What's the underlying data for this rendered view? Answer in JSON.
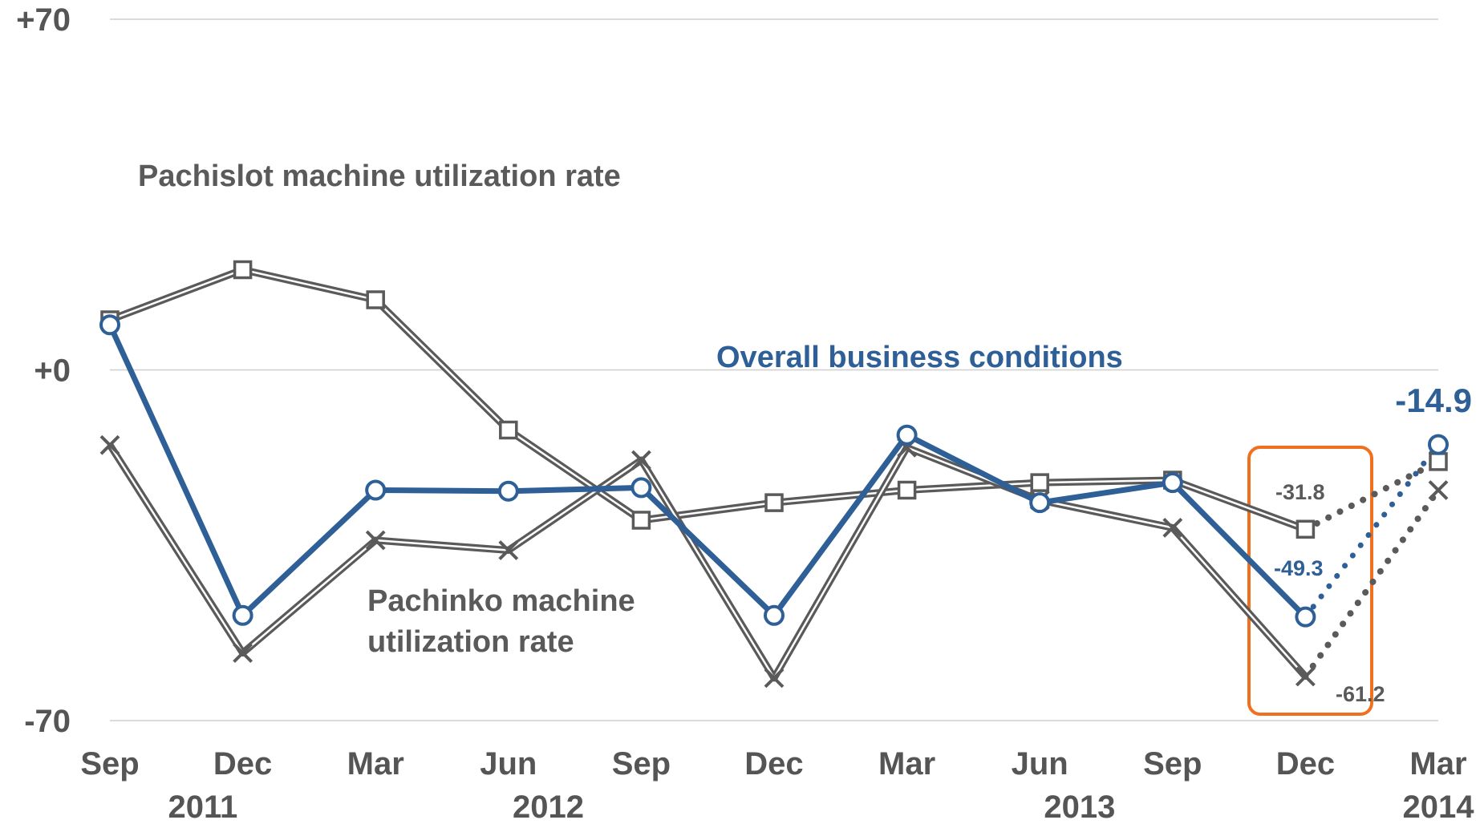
{
  "chart_data": {
    "type": "line",
    "x": [
      "Sep",
      "Dec",
      "Mar",
      "Jun",
      "Sep",
      "Dec",
      "Mar",
      "Jun",
      "Sep",
      "Dec",
      "Mar"
    ],
    "years": [
      {
        "label": "2011",
        "x_index": 0.7
      },
      {
        "label": "2012",
        "x_index": 3.3
      },
      {
        "label": "2013",
        "x_index": 7.3
      },
      {
        "label": "2014",
        "x_index": 10.0
      }
    ],
    "ylim": [
      -70,
      70
    ],
    "yticks": [
      {
        "value": 70,
        "label": "+70"
      },
      {
        "value": 0,
        "label": "+0"
      },
      {
        "value": -70,
        "label": "-70"
      }
    ],
    "grid": true,
    "series": [
      {
        "name": "Pachislot machine utilization rate",
        "color": "#5a5a5a",
        "marker": "square",
        "values": [
          10.0,
          20.0,
          14.0,
          -12.0,
          -30.0,
          -26.5,
          -24.0,
          -22.5,
          -22.0,
          -31.8,
          -18.3
        ],
        "dotted_from": 9
      },
      {
        "name": "Pachinko machine utilization rate",
        "color": "#5a5a5a",
        "marker": "x",
        "values": [
          -15.0,
          -56.5,
          -34.0,
          -36.0,
          -18.0,
          -61.5,
          -15.5,
          -26.0,
          -31.5,
          -61.2,
          -24.0
        ],
        "dotted_from": 9
      },
      {
        "name": "Overall business conditions",
        "color": "#2e5f96",
        "marker": "circle",
        "values": [
          9.0,
          -49.0,
          -24.0,
          -24.2,
          -23.5,
          -49.0,
          -13.0,
          -26.5,
          -22.5,
          -49.3,
          -14.9
        ],
        "dotted_from": 9
      }
    ],
    "labels": {
      "pachislot": "Pachislot machine utilization rate",
      "pachinko_line1": "Pachinko machine",
      "pachinko_line2": "utilization rate",
      "overall": "Overall business conditions"
    },
    "data_labels": {
      "pachislot_dec13": "-31.8",
      "overall_dec13": "-49.3",
      "pachinko_dec13": "-61.2",
      "overall_mar14": "-14.9"
    },
    "highlight_color": "#f07020"
  }
}
